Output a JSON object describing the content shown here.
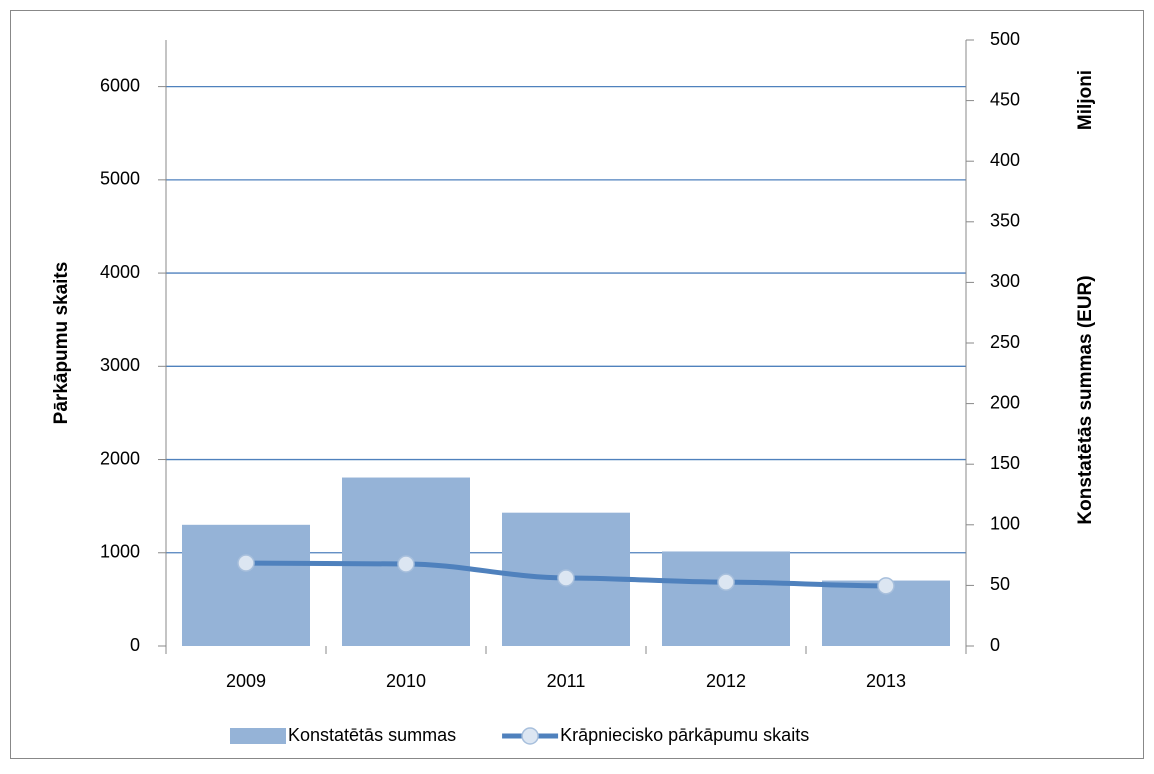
{
  "chart_data": {
    "type": "combo",
    "categories": [
      "2009",
      "2010",
      "2011",
      "2012",
      "2013"
    ],
    "ylabel": "Pārkāpumu skaits",
    "y2label": "Konstatētās summas (EUR)",
    "y2unit": "Miljoni",
    "ylim": [
      0,
      6500
    ],
    "yticks": [
      0,
      1000,
      2000,
      3000,
      4000,
      5000,
      6000
    ],
    "y2lim": [
      0,
      500
    ],
    "y2ticks": [
      0,
      50,
      100,
      150,
      200,
      250,
      300,
      350,
      400,
      450,
      500
    ],
    "grid": true,
    "legend": "bottom",
    "series": [
      {
        "name": "Konstatētās summas",
        "type": "bar",
        "axis": "y2",
        "color": "#95b3d7",
        "values": [
          100,
          139,
          110,
          78,
          54
        ]
      },
      {
        "name": "Krāpniecisko pārkāpumu skaits",
        "type": "line",
        "axis": "y",
        "color": "#4f81bd",
        "values": [
          890,
          880,
          730,
          685,
          645
        ]
      }
    ]
  }
}
